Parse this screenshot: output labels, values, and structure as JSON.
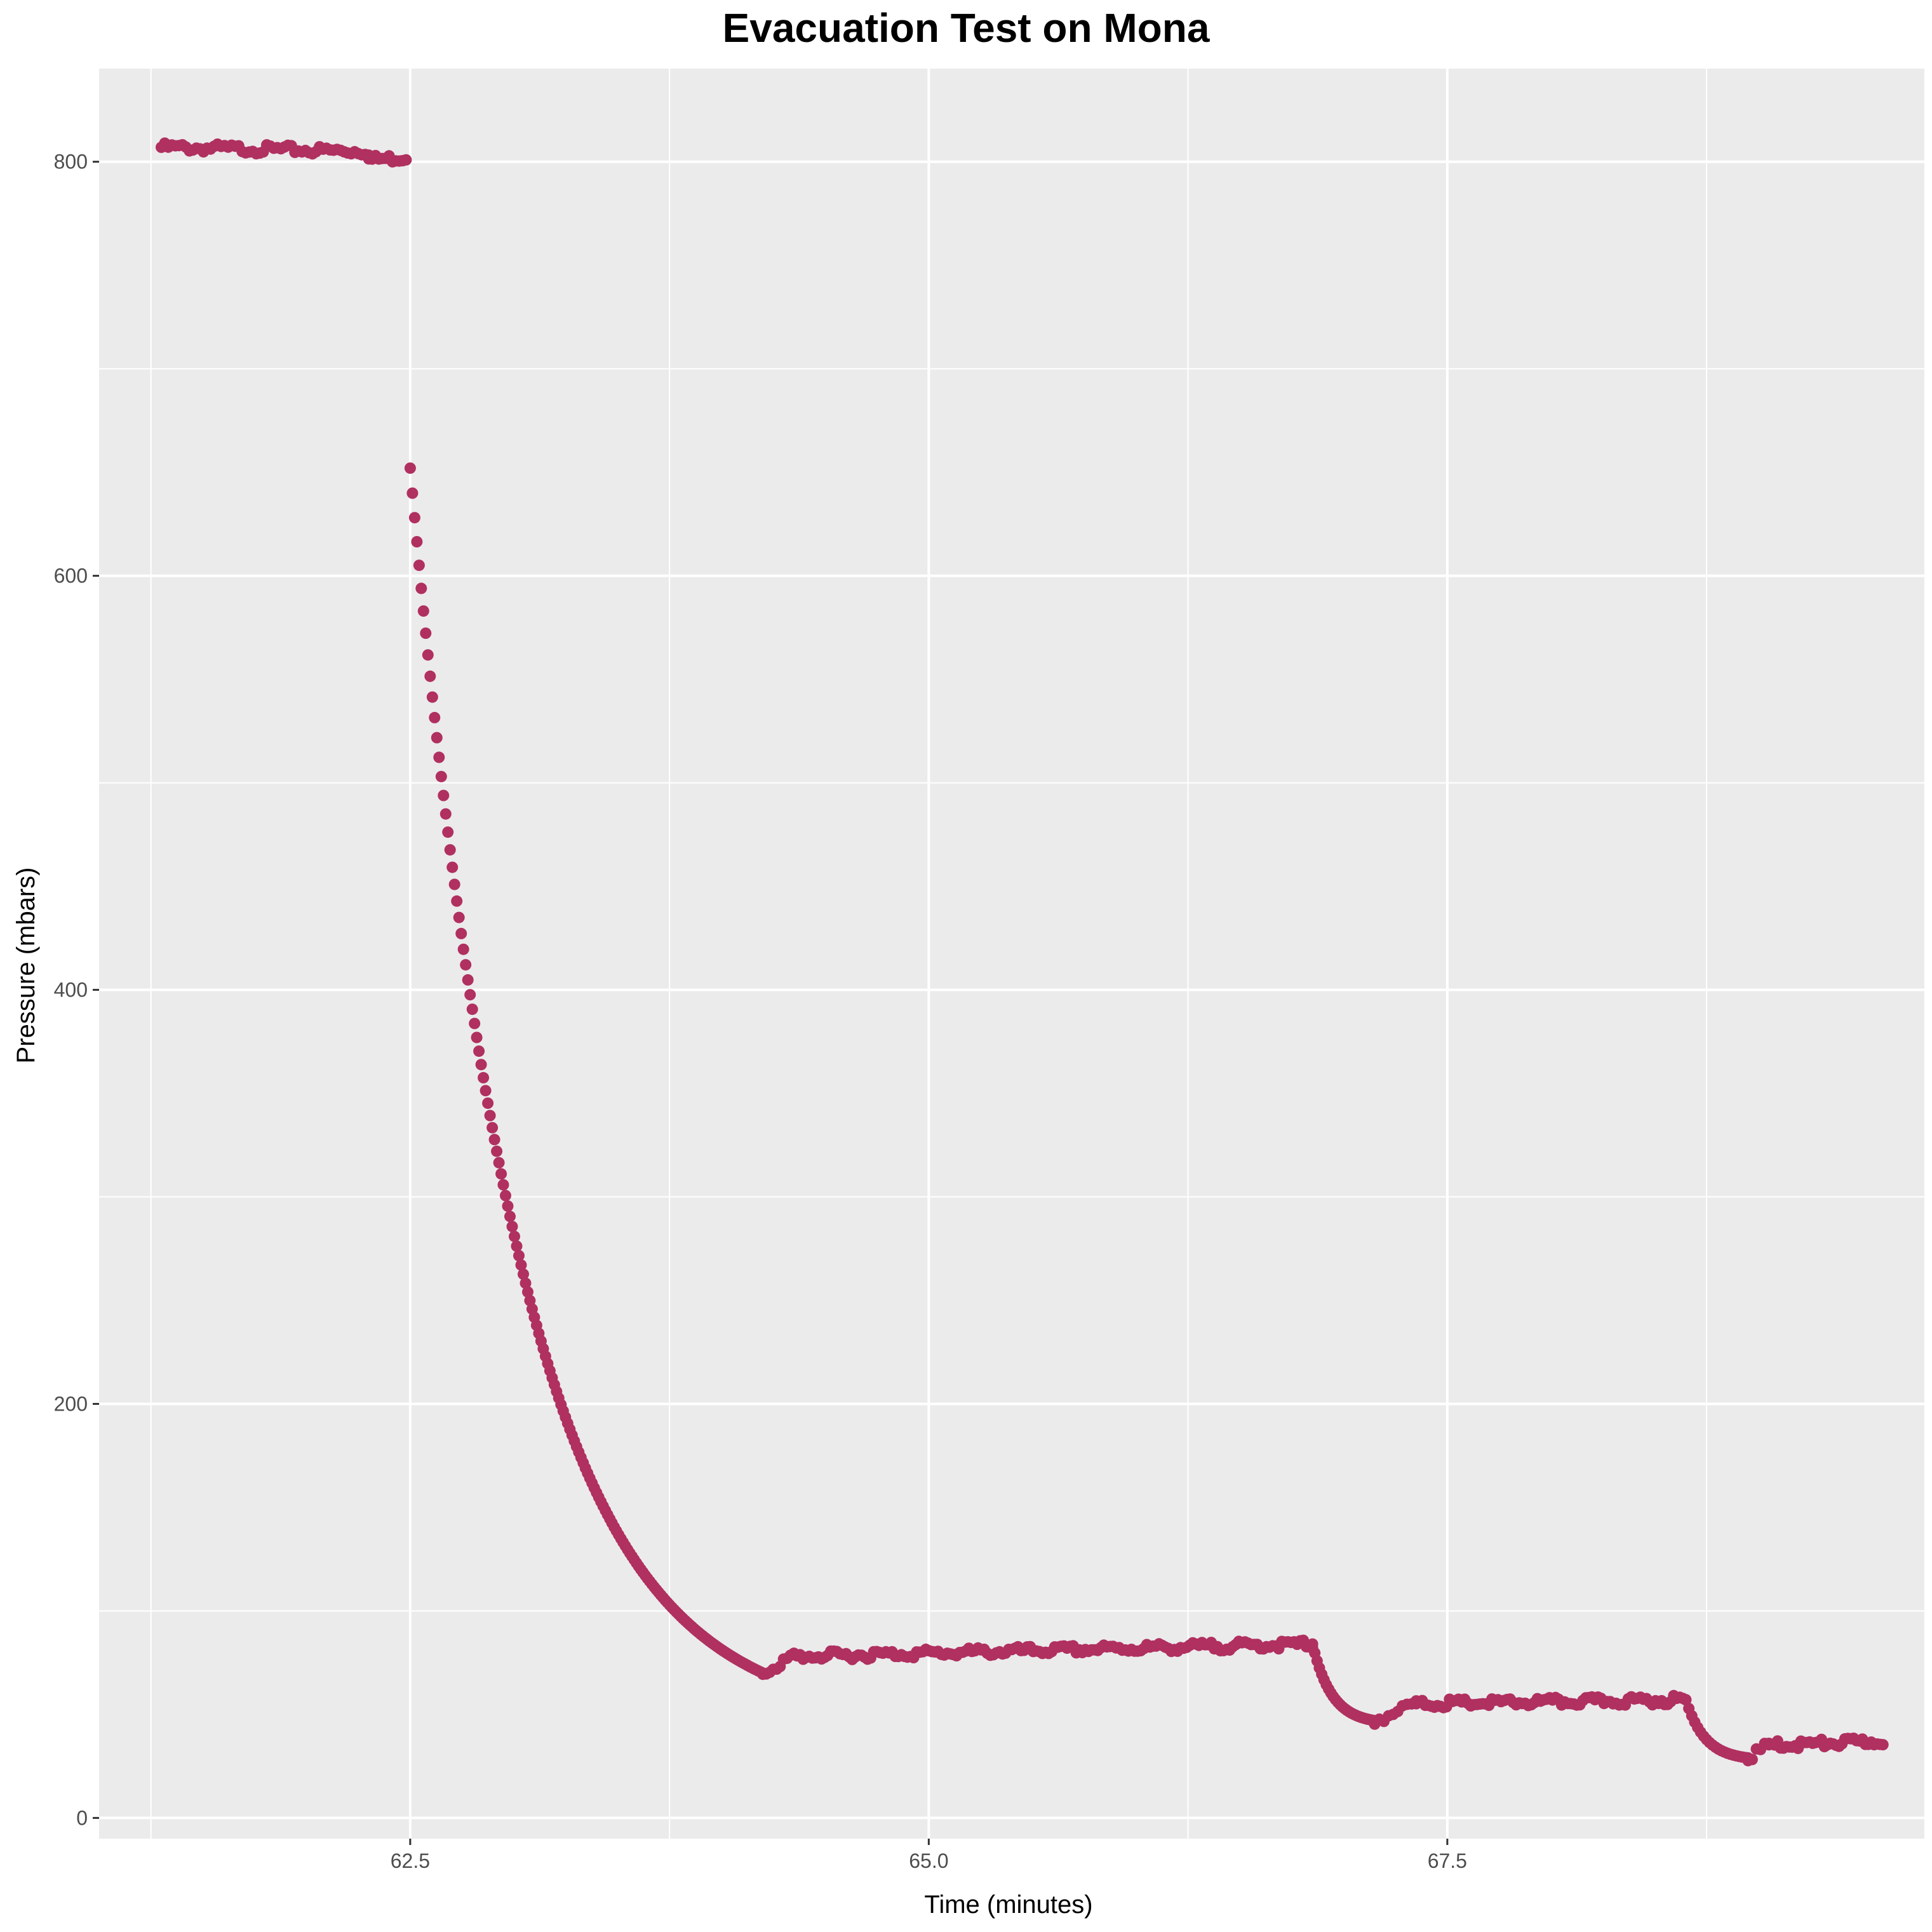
{
  "chart_data": {
    "type": "scatter",
    "title": "Evacuation Test on Mona",
    "xlabel": "Time (minutes)",
    "ylabel": "Pressure (mbars)",
    "xlim": [
      61.0,
      69.8
    ],
    "ylim": [
      -10,
      845
    ],
    "x_ticks": [
      62.5,
      65.0,
      67.5
    ],
    "x_tick_labels": [
      "62.5",
      "65.0",
      "67.5"
    ],
    "x_minor_ticks": [
      61.25,
      63.75,
      66.25,
      68.75
    ],
    "y_ticks": [
      0,
      200,
      400,
      600,
      800
    ],
    "y_tick_labels": [
      "0",
      "200",
      "400",
      "600",
      "800"
    ],
    "y_minor_ticks": [
      100,
      300,
      500,
      700
    ],
    "grid": true,
    "legend": "none",
    "colors": {
      "points": "#b03060",
      "panel": "#ebebeb",
      "grid": "#ffffff"
    },
    "series": [
      {
        "segments": [
          {
            "x_start": 61.3,
            "x_end": 62.3,
            "y_start": 807,
            "y_end": 805,
            "n": 60
          },
          {
            "x_start": 62.3,
            "x_end": 62.48,
            "y_start": 801,
            "y_end": 802,
            "n": 12
          },
          {
            "x_start": 62.5,
            "x_end": 64.2,
            "y_start": 652,
            "y_end": 70,
            "n": 160,
            "shape": "decay"
          },
          {
            "x_start": 64.2,
            "x_end": 64.35,
            "y_start": 70,
            "y_end": 78,
            "n": 10
          },
          {
            "x_start": 64.35,
            "x_end": 66.85,
            "y_start": 78,
            "y_end": 84,
            "n": 170
          },
          {
            "x_start": 66.85,
            "x_end": 67.15,
            "y_start": 84,
            "y_end": 47,
            "n": 28,
            "shape": "decay"
          },
          {
            "x_start": 67.15,
            "x_end": 67.35,
            "y_start": 47,
            "y_end": 55,
            "n": 10
          },
          {
            "x_start": 67.35,
            "x_end": 68.65,
            "y_start": 55,
            "y_end": 57,
            "n": 90
          },
          {
            "x_start": 68.65,
            "x_end": 68.95,
            "y_start": 57,
            "y_end": 29,
            "n": 22,
            "shape": "decay"
          },
          {
            "x_start": 68.95,
            "x_end": 69.05,
            "y_start": 29,
            "y_end": 35,
            "n": 6
          },
          {
            "x_start": 69.05,
            "x_end": 69.6,
            "y_start": 35,
            "y_end": 37,
            "n": 40
          }
        ]
      }
    ]
  }
}
